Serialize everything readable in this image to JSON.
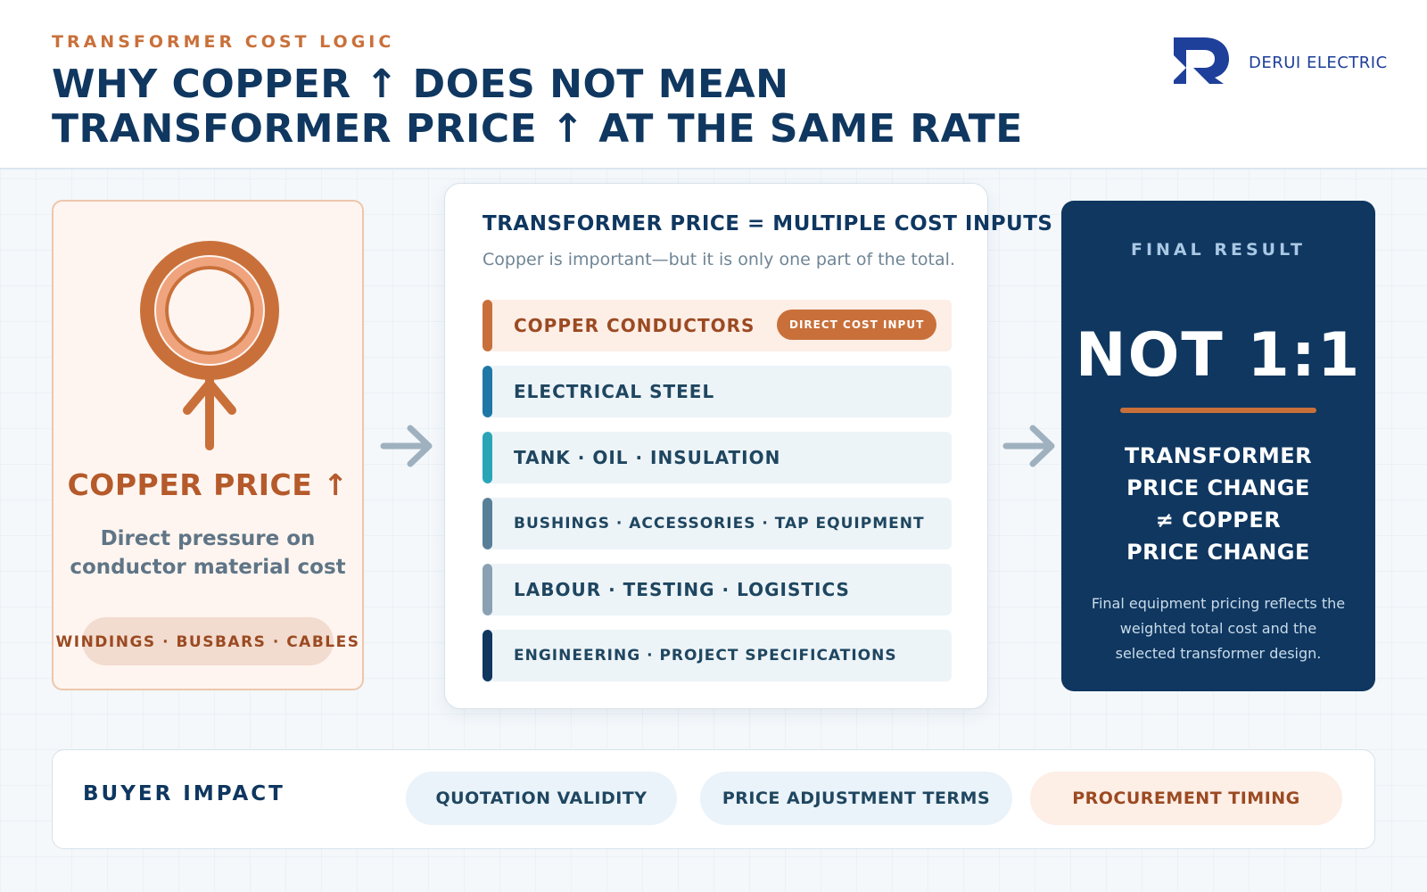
{
  "header": {
    "eyebrow": "TRANSFORMER COST LOGIC",
    "title_line1": "WHY COPPER ↑ DOES NOT MEAN",
    "title_line2": "TRANSFORMER PRICE ↑ AT THE SAME RATE",
    "brand": "DERUI ELECTRIC",
    "logo_icon": "derui-logo-mark"
  },
  "copper": {
    "title": "COPPER PRICE ↑",
    "description_line1": "Direct pressure on",
    "description_line2": "conductor material cost",
    "pill": "WINDINGS · BUSBARS · CABLES",
    "icon": "copper-up-icon"
  },
  "costs": {
    "title": "TRANSFORMER PRICE = MULTIPLE COST INPUTS",
    "subtitle": "Copper is important—but it is only one part of the total.",
    "badge": "DIRECT COST INPUT",
    "items": [
      {
        "label": "COPPER CONDUCTORS",
        "color": "#c9703a"
      },
      {
        "label": "ELECTRICAL STEEL",
        "color": "#1f77a6"
      },
      {
        "label": "TANK · OIL · INSULATION",
        "color": "#2aa5b8"
      },
      {
        "label": "BUSHINGS · ACCESSORIES · TAP EQUIPMENT",
        "color": "#587f98"
      },
      {
        "label": "LABOUR · TESTING · LOGISTICS",
        "color": "#8aa1b3"
      },
      {
        "label": "ENGINEERING · PROJECT SPECIFICATIONS",
        "color": "#0f3760"
      }
    ]
  },
  "result": {
    "eyebrow": "FINAL RESULT",
    "headline": "NOT 1:1",
    "statement_line1": "TRANSFORMER",
    "statement_line2": "PRICE CHANGE",
    "statement_line3": "≠ COPPER",
    "statement_line4": "PRICE CHANGE",
    "note": "Final equipment pricing reflects the weighted total cost and the selected transformer design."
  },
  "impact": {
    "title": "BUYER IMPACT",
    "chips": [
      "QUOTATION VALIDITY",
      "PRICE ADJUSTMENT TERMS",
      "PROCUREMENT TIMING"
    ]
  },
  "colors": {
    "navy": "#0f3760",
    "copper": "#c9703a",
    "background": "#f4f8fb"
  }
}
